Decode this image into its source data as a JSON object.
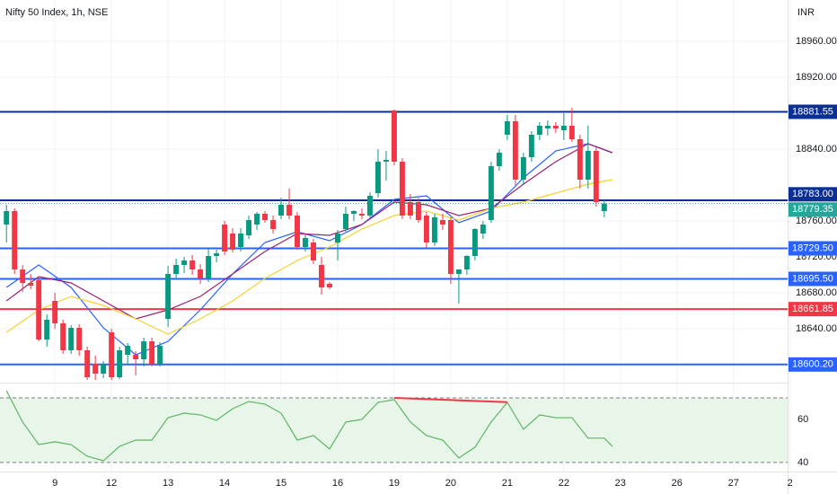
{
  "chart_data": [
    {
      "type": "candlestick",
      "title": "Nifty 50 Index, 1h, NSE",
      "currency": "INR",
      "up_color": "#089981",
      "down_color": "#f23645",
      "grid": true,
      "xlim": [
        -6.8,
        90.7
      ],
      "xticks": [
        {
          "value": 0,
          "label": "9"
        },
        {
          "value": 7,
          "label": "12"
        },
        {
          "value": 14,
          "label": "13"
        },
        {
          "value": 21,
          "label": "14"
        },
        {
          "value": 28,
          "label": "15"
        },
        {
          "value": 35,
          "label": "16"
        },
        {
          "value": 42,
          "label": "19"
        },
        {
          "value": 49,
          "label": "20"
        },
        {
          "value": 56,
          "label": "21"
        },
        {
          "value": 63,
          "label": "22"
        },
        {
          "value": 70,
          "label": "23"
        },
        {
          "value": 77,
          "label": "26"
        },
        {
          "value": 84,
          "label": "27"
        },
        {
          "value": 91,
          "label": "2"
        }
      ],
      "ylim": [
        18581,
        19006
      ],
      "yticks": [
        {
          "value": 18960,
          "label": "18960.00"
        },
        {
          "value": 18920,
          "label": "18920.00"
        },
        {
          "value": 18840,
          "label": "18840.00"
        },
        {
          "value": 18760,
          "label": "18760.00"
        },
        {
          "value": 18720,
          "label": "18720.00"
        },
        {
          "value": 18680,
          "label": "18680.00"
        },
        {
          "value": 18640,
          "label": "18640.00"
        }
      ],
      "x": [
        -6,
        -5,
        -4,
        -3,
        -2,
        -1,
        0,
        1,
        2,
        3,
        4,
        5,
        6,
        7,
        8,
        9,
        10,
        11,
        12,
        13,
        14,
        15,
        16,
        17,
        18,
        19,
        20,
        21,
        22,
        23,
        24,
        25,
        26,
        27,
        28,
        29,
        30,
        31,
        32,
        33,
        34,
        35,
        36,
        37,
        38,
        39,
        40,
        41,
        42,
        43,
        44,
        45,
        46,
        47,
        48,
        49,
        50,
        51,
        52,
        53,
        54,
        55,
        56,
        57,
        58,
        59,
        60,
        61,
        62,
        63,
        64,
        65,
        66,
        67,
        68
      ],
      "open": [
        18756,
        18771,
        18706,
        18691,
        18694,
        18628,
        18671,
        18646,
        18616,
        18641,
        18616,
        18601,
        18590,
        18636,
        18586,
        18611,
        18611,
        18606,
        18626,
        18601,
        18651,
        18701,
        18711,
        18716,
        18706,
        18696,
        18721,
        18756,
        18746,
        18731,
        18744,
        18756,
        18768,
        18761,
        18766,
        18778,
        18766,
        18731,
        18736,
        18711,
        18690,
        18736,
        18751,
        18768,
        18768,
        18766,
        18791,
        18826,
        18883,
        18826,
        18781,
        18781,
        18766,
        18736,
        18761,
        18761,
        18701,
        18706,
        18721,
        18746,
        18761,
        18821,
        18856,
        18871,
        18806,
        18831,
        18856,
        18863,
        18866,
        18861,
        18866,
        18851,
        18806,
        18838,
        18771
      ],
      "high": [
        18778,
        18774,
        18711,
        18701,
        18698,
        18656,
        18680,
        18650,
        18644,
        18645,
        18620,
        18610,
        18604,
        18640,
        18620,
        18624,
        18615,
        18630,
        18630,
        18625,
        18710,
        18718,
        18720,
        18722,
        18712,
        18730,
        18728,
        18760,
        18752,
        18752,
        18766,
        18770,
        18771,
        18766,
        18786,
        18796,
        18770,
        18745,
        18740,
        18720,
        18692,
        18750,
        18776,
        18772,
        18774,
        18792,
        18840,
        18838,
        18884,
        18830,
        18790,
        18786,
        18770,
        18768,
        18768,
        18764,
        18706,
        18722,
        18752,
        18760,
        18826,
        18840,
        18878,
        18878,
        18836,
        18860,
        18870,
        18872,
        18870,
        18880,
        18886,
        18856,
        18866,
        18842,
        18783
      ],
      "low": [
        18736,
        18701,
        18681,
        18684,
        18626,
        18620,
        18640,
        18612,
        18612,
        18610,
        18583,
        18583,
        18585,
        18583,
        18584,
        18600,
        18588,
        18598,
        18598,
        18598,
        18642,
        18695,
        18702,
        18700,
        18690,
        18692,
        18714,
        18722,
        18725,
        18726,
        18740,
        18750,
        18758,
        18746,
        18762,
        18762,
        18728,
        18726,
        18712,
        18678,
        18684,
        18716,
        18748,
        18760,
        18762,
        18764,
        18786,
        18805,
        18822,
        18762,
        18762,
        18758,
        18730,
        18732,
        18750,
        18690,
        18668,
        18700,
        18716,
        18740,
        18758,
        18816,
        18850,
        18800,
        18800,
        18826,
        18850,
        18855,
        18858,
        18850,
        18848,
        18796,
        18796,
        18776,
        18764
      ],
      "close": [
        18771,
        18706,
        18691,
        18688,
        18628,
        18650,
        18646,
        18616,
        18641,
        18616,
        18586,
        18590,
        18600,
        18586,
        18616,
        18621,
        18606,
        18626,
        18601,
        18621,
        18701,
        18711,
        18716,
        18706,
        18696,
        18721,
        18724,
        18726,
        18728,
        18746,
        18761,
        18768,
        18761,
        18751,
        18778,
        18766,
        18731,
        18741,
        18716,
        18686,
        18686,
        18746,
        18768,
        18771,
        18766,
        18788,
        18826,
        18828,
        18826,
        18766,
        18766,
        18761,
        18736,
        18764,
        18756,
        18701,
        18706,
        18721,
        18751,
        18756,
        18821,
        18836,
        18871,
        18806,
        18831,
        18856,
        18866,
        18866,
        18863,
        18866,
        18851,
        18806,
        18838,
        18781,
        18779.35
      ],
      "series": [
        {
          "color": "#2962ff",
          "x": [
            -6,
            -2,
            2,
            6,
            10,
            14,
            18,
            22,
            26,
            30,
            34,
            38,
            42,
            46,
            50,
            54,
            58,
            62,
            66,
            69
          ],
          "values": [
            18686,
            18711,
            18686,
            18641,
            18611,
            18626,
            18661,
            18701,
            18736,
            18748,
            18738,
            18756,
            18784,
            18788,
            18758,
            18771,
            18808,
            18838,
            18846,
            18836
          ]
        },
        {
          "color": "#9c1f74",
          "x": [
            -6,
            -2,
            2,
            6,
            10,
            14,
            18,
            22,
            26,
            30,
            34,
            38,
            42,
            46,
            50,
            54,
            58,
            62,
            66,
            69
          ],
          "values": [
            18671,
            18698,
            18691,
            18671,
            18651,
            18661,
            18676,
            18701,
            18726,
            18746,
            18744,
            18756,
            18781,
            18778,
            18766,
            18774,
            18801,
            18826,
            18846,
            18836
          ]
        },
        {
          "color": "#f5d22e",
          "x": [
            -6,
            -2,
            2,
            6,
            10,
            14,
            18,
            22,
            26,
            30,
            34,
            38,
            42,
            46,
            50,
            54,
            58,
            62,
            66,
            69
          ],
          "values": [
            18636,
            18661,
            18676,
            18666,
            18651,
            18634,
            18651,
            18671,
            18696,
            18716,
            18731,
            18751,
            18766,
            18771,
            18761,
            18774,
            18781,
            18791,
            18801,
            18806
          ]
        }
      ],
      "levels": [
        {
          "value": 18881.55,
          "label": "18881.55",
          "color": "#0c2f94"
        },
        {
          "value": 18783,
          "label": "18783.00",
          "color": "#0c2f94"
        },
        {
          "value": 18729.5,
          "label": "18729.50",
          "color": "#2962ff"
        },
        {
          "value": 18695.5,
          "label": "18695.50",
          "color": "#2962ff"
        },
        {
          "value": 18661.85,
          "label": "18661.85",
          "color": "#f23645"
        },
        {
          "value": 18600.2,
          "label": "18600.20",
          "color": "#2962ff"
        }
      ],
      "last_price": {
        "value": 18779.35,
        "label": "18779.35",
        "color": "#26a69a"
      }
    },
    {
      "type": "line",
      "color": "#5fb564",
      "band": [
        40,
        70
      ],
      "band_color": "#e8f5e9",
      "ylim": [
        35.8,
        76.25
      ],
      "yticks": [
        60,
        40
      ],
      "x": [
        -6,
        -4,
        -2,
        0,
        2,
        4,
        6,
        8,
        10,
        12,
        14,
        16,
        18,
        20,
        22,
        24,
        26,
        28,
        30,
        32,
        34,
        36,
        38,
        40,
        42,
        44,
        46,
        48,
        50,
        52,
        54,
        56,
        58,
        60,
        62,
        64,
        66,
        68,
        69
      ],
      "values": [
        73.3,
        58.8,
        48.3,
        49.6,
        48.3,
        42.9,
        40.8,
        47.5,
        50.4,
        50.4,
        60.8,
        62.9,
        62.1,
        59.6,
        65,
        68.3,
        67.1,
        62.9,
        50.4,
        52.5,
        46.3,
        58.8,
        60,
        67.9,
        69.2,
        58.8,
        52.5,
        50.4,
        42.1,
        47.1,
        58.8,
        67.9,
        55.4,
        62.1,
        60.8,
        60.8,
        51.3,
        51.3,
        47.5
      ],
      "divergence": {
        "color": "#f23645",
        "x": [
          42,
          56
        ],
        "values": [
          70,
          68
        ]
      }
    }
  ]
}
